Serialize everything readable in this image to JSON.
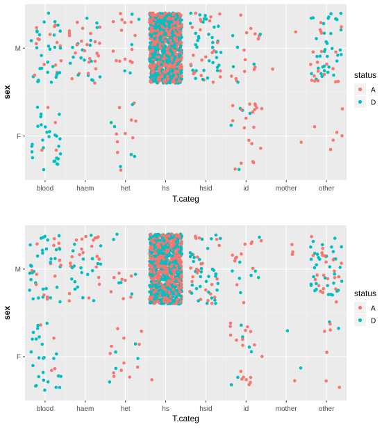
{
  "panels": [
    {
      "chart_data": {
        "type": "scatter",
        "xlabel": "T.categ",
        "ylabel": "sex",
        "categories": [
          "blood",
          "haem",
          "het",
          "hs",
          "hsid",
          "id",
          "mother",
          "other"
        ],
        "y_categories": [
          "F",
          "M"
        ],
        "legend": {
          "title": "status",
          "position": "right",
          "entries": [
            {
              "label": "A",
              "color": "#F8766D"
            },
            {
              "label": "D",
              "color": "#00BFC4"
            }
          ]
        },
        "grid": true,
        "jitter": {
          "x": 0.4,
          "y": 0.4
        },
        "series": [
          {
            "name": "A",
            "counts": {
              "blood|M": 14,
              "blood|F": 4,
              "haem|M": 24,
              "haem|F": 0,
              "het|M": 14,
              "het|F": 10,
              "hs|M": 650,
              "hs|F": 0,
              "hsid|M": 22,
              "hsid|F": 0,
              "id|M": 14,
              "id|F": 20,
              "mother|M": 2,
              "mother|F": 1,
              "other|M": 20,
              "other|F": 6
            }
          },
          {
            "name": "D",
            "counts": {
              "blood|M": 30,
              "blood|F": 28,
              "haem|M": 18,
              "haem|F": 0,
              "het|M": 5,
              "het|F": 6,
              "hs|M": 550,
              "hs|F": 0,
              "hsid|M": 36,
              "hsid|F": 0,
              "id|M": 6,
              "id|F": 5,
              "mother|M": 0,
              "mother|F": 0,
              "other|M": 36,
              "other|F": 0
            }
          }
        ]
      }
    },
    {
      "chart_data": {
        "type": "scatter",
        "xlabel": "T.categ",
        "ylabel": "sex",
        "categories": [
          "blood",
          "haem",
          "het",
          "hs",
          "hsid",
          "id",
          "mother",
          "other"
        ],
        "y_categories": [
          "F",
          "M"
        ],
        "legend": {
          "title": "status",
          "position": "right",
          "entries": [
            {
              "label": "A",
              "color": "#F8766D"
            },
            {
              "label": "D",
              "color": "#00BFC4"
            }
          ]
        },
        "grid": true,
        "jitter": {
          "x": 0.4,
          "y": 0.4
        },
        "series": [
          {
            "name": "A",
            "counts": {
              "blood|M": 16,
              "blood|F": 4,
              "haem|M": 22,
              "haem|F": 0,
              "het|M": 8,
              "het|F": 12,
              "hs|M": 650,
              "hs|F": 1,
              "hsid|M": 26,
              "hsid|F": 0,
              "id|M": 12,
              "id|F": 18,
              "mother|M": 3,
              "mother|F": 1,
              "other|M": 22,
              "other|F": 6
            }
          },
          {
            "name": "D",
            "counts": {
              "blood|M": 32,
              "blood|F": 26,
              "haem|M": 20,
              "haem|F": 0,
              "het|M": 6,
              "het|F": 5,
              "hs|M": 550,
              "hs|F": 0,
              "hsid|M": 34,
              "hsid|F": 0,
              "id|M": 8,
              "id|F": 6,
              "mother|M": 0,
              "mother|F": 2,
              "other|M": 36,
              "other|F": 2
            }
          }
        ]
      }
    }
  ]
}
